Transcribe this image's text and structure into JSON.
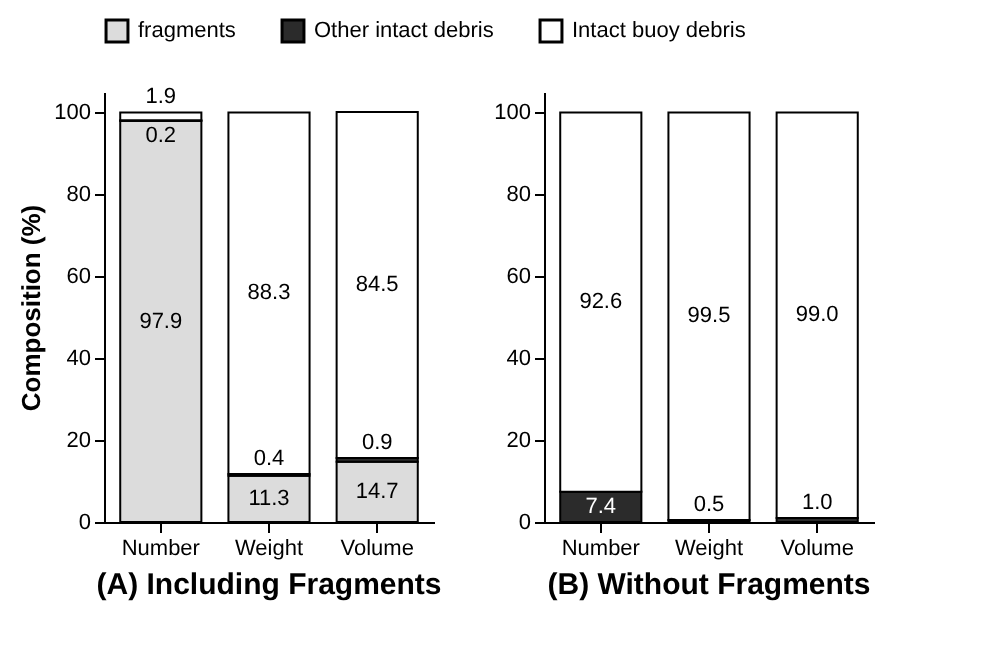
{
  "chart_data": [
    {
      "type": "bar",
      "stacked": true,
      "title": "(A) Including Fragments",
      "ylabel": "Composition (%)",
      "categories": [
        "Number",
        "Weight",
        "Volume"
      ],
      "ylim": [
        0,
        105
      ],
      "yticks": [
        0,
        20,
        40,
        60,
        80,
        100
      ],
      "grid": false,
      "legend": "top",
      "series": [
        {
          "name": "fragments",
          "color": "#dcdcdc",
          "values": [
            97.9,
            11.3,
            14.7
          ],
          "value_labels": [
            "97.9",
            "11.3",
            "14.7"
          ]
        },
        {
          "name": "Other intact debris",
          "color": "#2b2b2b",
          "values": [
            0.2,
            0.4,
            0.9
          ],
          "value_labels": [
            "0.2",
            "0.4",
            "0.9"
          ]
        },
        {
          "name": "Intact buoy debris",
          "color": "#ffffff",
          "values": [
            1.9,
            88.3,
            84.5
          ],
          "value_labels": [
            "1.9",
            "88.3",
            "84.5"
          ]
        }
      ]
    },
    {
      "type": "bar",
      "stacked": true,
      "title": "(B) Without Fragments",
      "categories": [
        "Number",
        "Weight",
        "Volume"
      ],
      "ylim": [
        0,
        105
      ],
      "yticks": [
        0,
        20,
        40,
        60,
        80,
        100
      ],
      "grid": false,
      "series": [
        {
          "name": "Other intact debris",
          "color": "#2b2b2b",
          "values": [
            7.4,
            0.5,
            1.0
          ],
          "value_labels": [
            "7.4",
            "0.5",
            "1.0"
          ]
        },
        {
          "name": "Intact buoy debris",
          "color": "#ffffff",
          "values": [
            92.6,
            99.5,
            99.0
          ],
          "value_labels": [
            "92.6",
            "99.5",
            "99.0"
          ]
        }
      ]
    }
  ]
}
